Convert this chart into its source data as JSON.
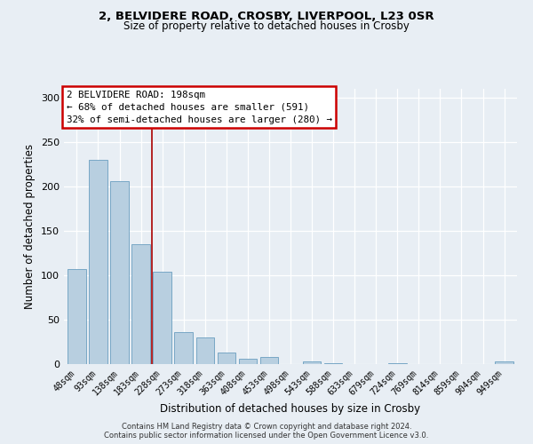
{
  "title1": "2, BELVIDERE ROAD, CROSBY, LIVERPOOL, L23 0SR",
  "title2": "Size of property relative to detached houses in Crosby",
  "xlabel": "Distribution of detached houses by size in Crosby",
  "ylabel": "Number of detached properties",
  "bar_labels": [
    "48sqm",
    "93sqm",
    "138sqm",
    "183sqm",
    "228sqm",
    "273sqm",
    "318sqm",
    "363sqm",
    "408sqm",
    "453sqm",
    "498sqm",
    "543sqm",
    "588sqm",
    "633sqm",
    "679sqm",
    "724sqm",
    "769sqm",
    "814sqm",
    "859sqm",
    "904sqm",
    "949sqm"
  ],
  "bar_values": [
    107,
    230,
    206,
    135,
    104,
    36,
    30,
    13,
    6,
    8,
    0,
    3,
    1,
    0,
    0,
    1,
    0,
    0,
    0,
    0,
    3
  ],
  "bar_color": "#b8cfe0",
  "bar_edge_color": "#6a9ec0",
  "vline_x_index": 3,
  "vline_color": "#aa0000",
  "annotation_title": "2 BELVIDERE ROAD: 198sqm",
  "annotation_line1": "← 68% of detached houses are smaller (591)",
  "annotation_line2": "32% of semi-detached houses are larger (280) →",
  "annotation_box_color": "#cc0000",
  "ylim": [
    0,
    310
  ],
  "yticks": [
    0,
    50,
    100,
    150,
    200,
    250,
    300
  ],
  "footer1": "Contains HM Land Registry data © Crown copyright and database right 2024.",
  "footer2": "Contains public sector information licensed under the Open Government Licence v3.0.",
  "bg_color": "#e8eef4"
}
